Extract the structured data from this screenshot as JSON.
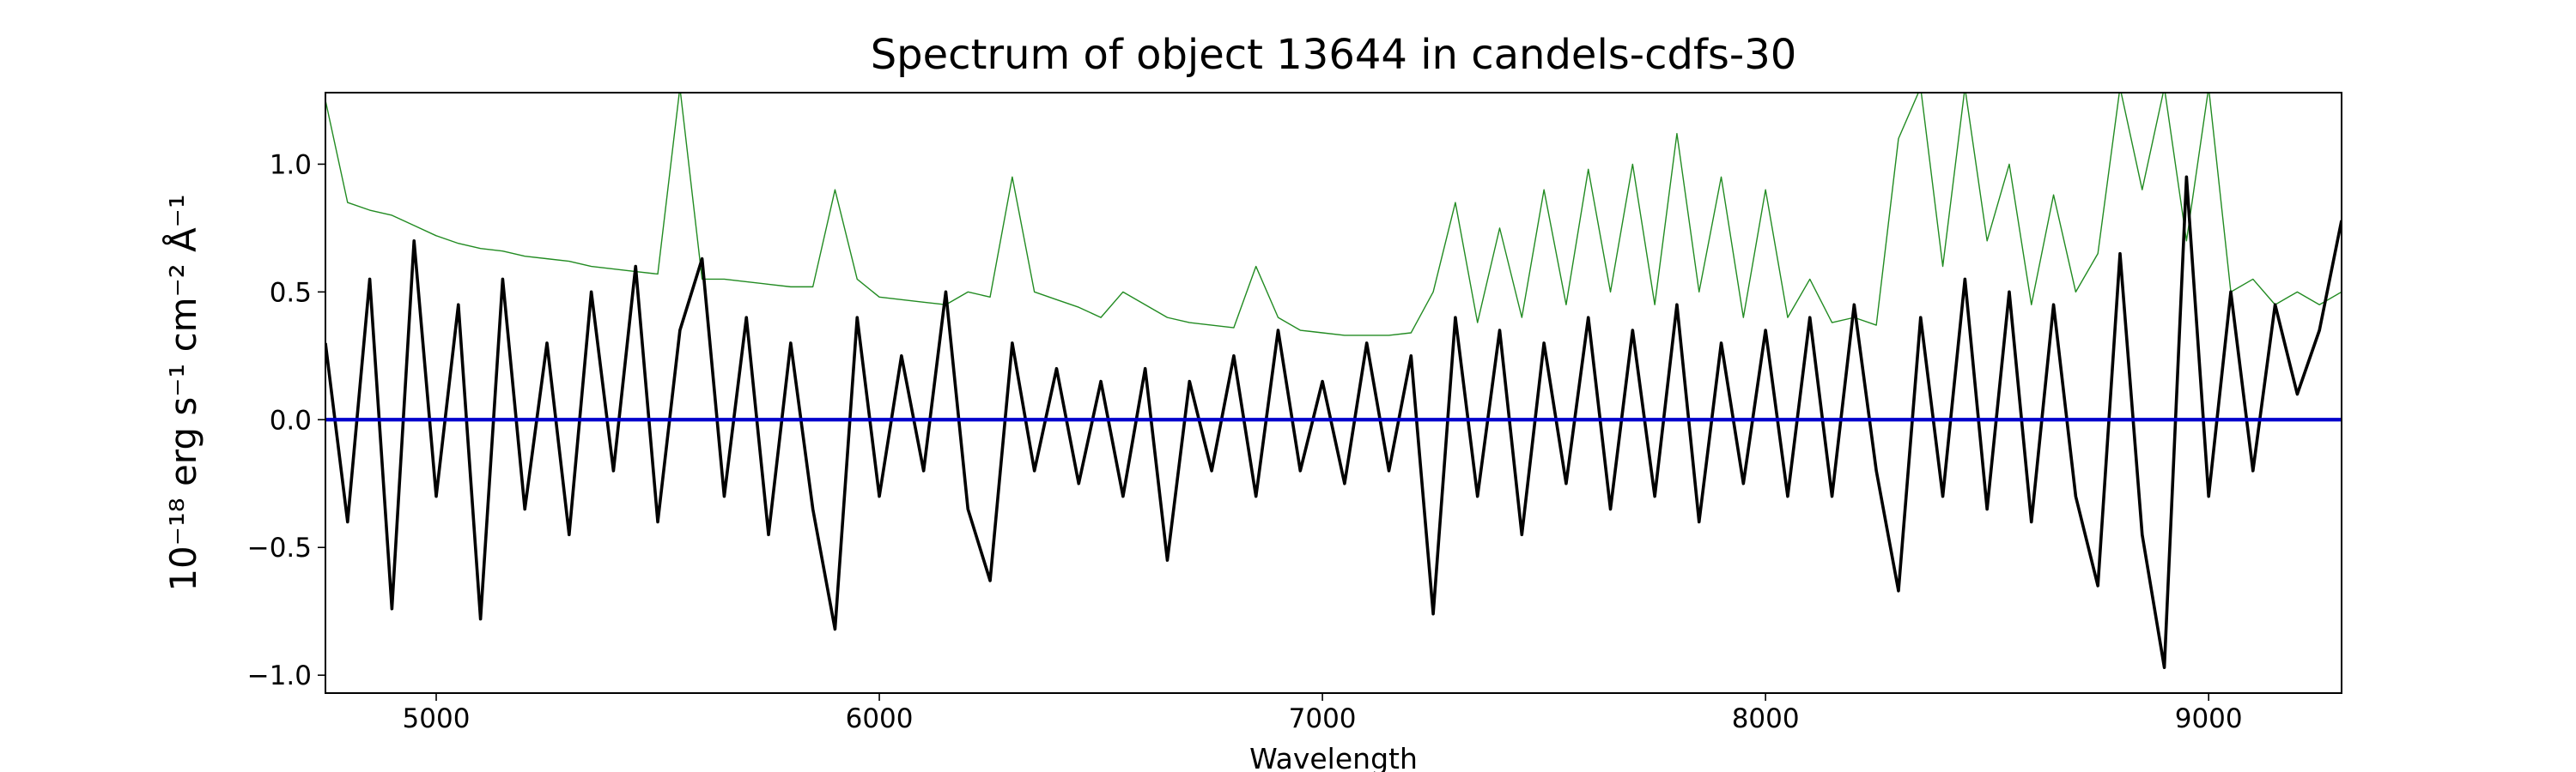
{
  "chart_data": {
    "type": "line",
    "title": "Spectrum of object 13644 in candels-cdfs-30",
    "xlabel": "Wavelength",
    "ylabel": "10⁻¹⁸ erg s⁻¹ cm⁻² Å⁻¹",
    "xlim": [
      4750,
      9300
    ],
    "ylim": [
      -1.07,
      1.28
    ],
    "xticks": [
      5000,
      6000,
      7000,
      8000,
      9000
    ],
    "yticks": [
      {
        "value": -1.0,
        "label": "−1.0"
      },
      {
        "value": -0.5,
        "label": "−0.5"
      },
      {
        "value": 0.0,
        "label": "0.0"
      },
      {
        "value": 0.5,
        "label": "0.5"
      },
      {
        "value": 1.0,
        "label": "1.0"
      }
    ],
    "series": [
      {
        "color": "#228b22",
        "x": [
          4750,
          4800,
          4850,
          4900,
          4950,
          5000,
          5050,
          5100,
          5150,
          5200,
          5250,
          5300,
          5350,
          5400,
          5450,
          5500,
          5550,
          5600,
          5650,
          5700,
          5750,
          5800,
          5850,
          5900,
          5950,
          6000,
          6050,
          6100,
          6150,
          6200,
          6250,
          6300,
          6350,
          6400,
          6450,
          6500,
          6550,
          6600,
          6650,
          6700,
          6750,
          6800,
          6850,
          6900,
          6950,
          7000,
          7050,
          7100,
          7150,
          7200,
          7250,
          7300,
          7350,
          7400,
          7450,
          7500,
          7550,
          7600,
          7650,
          7700,
          7750,
          7800,
          7850,
          7900,
          7950,
          8000,
          8050,
          8100,
          8150,
          8200,
          8250,
          8300,
          8350,
          8400,
          8450,
          8500,
          8550,
          8600,
          8650,
          8700,
          8750,
          8800,
          8850,
          8900,
          8950,
          9000,
          9050,
          9100,
          9150,
          9200,
          9250,
          9300
        ],
        "values": [
          1.25,
          0.85,
          0.82,
          0.8,
          0.76,
          0.72,
          0.69,
          0.67,
          0.66,
          0.64,
          0.63,
          0.62,
          0.6,
          0.59,
          0.58,
          0.57,
          1.3,
          0.55,
          0.55,
          0.54,
          0.53,
          0.52,
          0.52,
          0.9,
          0.55,
          0.48,
          0.47,
          0.46,
          0.45,
          0.5,
          0.48,
          0.95,
          0.5,
          0.47,
          0.44,
          0.4,
          0.5,
          0.45,
          0.4,
          0.38,
          0.37,
          0.36,
          0.6,
          0.4,
          0.35,
          0.34,
          0.33,
          0.33,
          0.33,
          0.34,
          0.5,
          0.85,
          0.38,
          0.75,
          0.4,
          0.9,
          0.45,
          0.98,
          0.5,
          1.0,
          0.45,
          1.12,
          0.5,
          0.95,
          0.4,
          0.9,
          0.4,
          0.55,
          0.38,
          0.4,
          0.37,
          1.1,
          1.3,
          0.6,
          1.3,
          0.7,
          1.0,
          0.45,
          0.88,
          0.5,
          0.65,
          1.3,
          0.9,
          1.3,
          0.7,
          1.3,
          0.5,
          0.55,
          0.45,
          0.5,
          0.45,
          0.5
        ]
      },
      {
        "color": "#000000",
        "x": [
          4750,
          4800,
          4850,
          4900,
          4950,
          5000,
          5050,
          5100,
          5150,
          5200,
          5250,
          5300,
          5350,
          5400,
          5450,
          5500,
          5550,
          5600,
          5650,
          5700,
          5750,
          5800,
          5850,
          5900,
          5950,
          6000,
          6050,
          6100,
          6150,
          6200,
          6250,
          6300,
          6350,
          6400,
          6450,
          6500,
          6550,
          6600,
          6650,
          6700,
          6750,
          6800,
          6850,
          6900,
          6950,
          7000,
          7050,
          7100,
          7150,
          7200,
          7250,
          7300,
          7350,
          7400,
          7450,
          7500,
          7550,
          7600,
          7650,
          7700,
          7750,
          7800,
          7850,
          7900,
          7950,
          8000,
          8050,
          8100,
          8150,
          8200,
          8250,
          8300,
          8350,
          8400,
          8450,
          8500,
          8550,
          8600,
          8650,
          8700,
          8750,
          8800,
          8850,
          8900,
          8950,
          9000,
          9050,
          9100,
          9150,
          9200,
          9250,
          9300
        ],
        "values": [
          0.3,
          -0.4,
          0.55,
          -0.74,
          0.7,
          -0.3,
          0.45,
          -0.78,
          0.55,
          -0.35,
          0.3,
          -0.45,
          0.5,
          -0.2,
          0.6,
          -0.4,
          0.35,
          0.63,
          -0.3,
          0.4,
          -0.45,
          0.3,
          -0.35,
          -0.82,
          0.4,
          -0.3,
          0.25,
          -0.2,
          0.5,
          -0.35,
          -0.63,
          0.3,
          -0.2,
          0.2,
          -0.25,
          0.15,
          -0.3,
          0.2,
          -0.55,
          0.15,
          -0.2,
          0.25,
          -0.3,
          0.35,
          -0.2,
          0.15,
          -0.25,
          0.3,
          -0.2,
          0.25,
          -0.76,
          0.4,
          -0.3,
          0.35,
          -0.45,
          0.3,
          -0.25,
          0.4,
          -0.35,
          0.35,
          -0.3,
          0.45,
          -0.4,
          0.3,
          -0.25,
          0.35,
          -0.3,
          0.4,
          -0.3,
          0.45,
          -0.2,
          -0.67,
          0.4,
          -0.3,
          0.55,
          -0.35,
          0.5,
          -0.4,
          0.45,
          -0.3,
          -0.65,
          0.65,
          -0.45,
          -0.97,
          0.95,
          -0.3,
          0.5,
          -0.2,
          0.45,
          0.1,
          0.35,
          0.78
        ]
      },
      {
        "color": "#0000cc",
        "x": [
          4750,
          9300
        ],
        "values": [
          0,
          0
        ]
      }
    ]
  }
}
